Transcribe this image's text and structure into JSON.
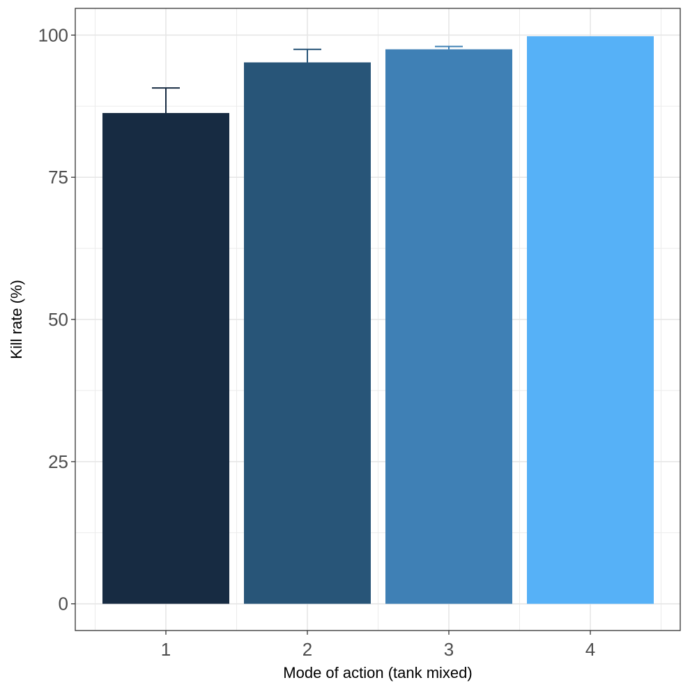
{
  "chart_data": {
    "type": "bar",
    "title": "",
    "xlabel": "Mode of action (tank mixed)",
    "ylabel": "Kill rate (%)",
    "categories": [
      "1",
      "2",
      "3",
      "4"
    ],
    "values": [
      86.3,
      95.2,
      97.5,
      99.8
    ],
    "error_upper": [
      90.7,
      97.5,
      98.0,
      99.8
    ],
    "colors": [
      "#172b42",
      "#285578",
      "#3f80b5",
      "#56b1f7"
    ],
    "ylim": [
      -4.7,
      104.7
    ],
    "yticks": [
      0,
      25,
      50,
      75,
      100
    ],
    "ytick_labels": [
      "0",
      "25",
      "50",
      "75",
      "100"
    ],
    "grid": true,
    "legend": "none"
  }
}
